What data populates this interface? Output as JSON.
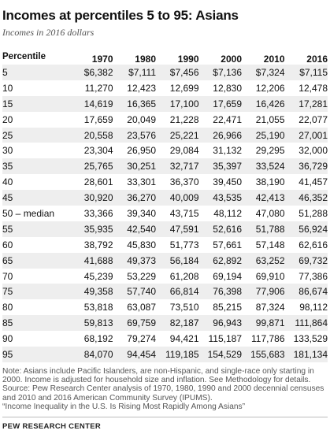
{
  "title": "Incomes at percentiles 5 to 95: Asians",
  "subtitle": "Incomes in 2016 dollars",
  "table": {
    "row_header": "Percentile",
    "columns": [
      "1970",
      "1980",
      "1990",
      "2000",
      "2010",
      "2016"
    ],
    "rows": [
      {
        "label": "5",
        "values": [
          "$6,382",
          "$7,111",
          "$7,456",
          "$7,136",
          "$7,324",
          "$7,115"
        ]
      },
      {
        "label": "10",
        "values": [
          "11,270",
          "12,423",
          "12,699",
          "12,830",
          "12,206",
          "12,478"
        ]
      },
      {
        "label": "15",
        "values": [
          "14,619",
          "16,365",
          "17,100",
          "17,659",
          "16,426",
          "17,281"
        ]
      },
      {
        "label": "20",
        "values": [
          "17,659",
          "20,049",
          "21,228",
          "22,471",
          "21,055",
          "22,077"
        ]
      },
      {
        "label": "25",
        "values": [
          "20,558",
          "23,576",
          "25,221",
          "26,966",
          "25,190",
          "27,001"
        ]
      },
      {
        "label": "30",
        "values": [
          "23,304",
          "26,950",
          "29,084",
          "31,132",
          "29,295",
          "32,000"
        ]
      },
      {
        "label": "35",
        "values": [
          "25,765",
          "30,251",
          "32,717",
          "35,397",
          "33,524",
          "36,729"
        ]
      },
      {
        "label": "40",
        "values": [
          "28,601",
          "33,301",
          "36,370",
          "39,450",
          "38,190",
          "41,457"
        ]
      },
      {
        "label": "45",
        "values": [
          "30,920",
          "36,270",
          "40,009",
          "43,535",
          "42,413",
          "46,352"
        ]
      },
      {
        "label": "50 – median",
        "values": [
          "33,366",
          "39,340",
          "43,715",
          "48,112",
          "47,080",
          "51,288"
        ]
      },
      {
        "label": "55",
        "values": [
          "35,935",
          "42,540",
          "47,591",
          "52,616",
          "51,788",
          "56,924"
        ]
      },
      {
        "label": "60",
        "values": [
          "38,792",
          "45,830",
          "51,773",
          "57,661",
          "57,148",
          "62,616"
        ]
      },
      {
        "label": "65",
        "values": [
          "41,688",
          "49,373",
          "56,184",
          "62,892",
          "63,252",
          "69,732"
        ]
      },
      {
        "label": "70",
        "values": [
          "45,239",
          "53,229",
          "61,208",
          "69,194",
          "69,910",
          "77,386"
        ]
      },
      {
        "label": "75",
        "values": [
          "49,358",
          "57,740",
          "66,814",
          "76,398",
          "77,906",
          "86,674"
        ]
      },
      {
        "label": "80",
        "values": [
          "53,818",
          "63,087",
          "73,510",
          "85,215",
          "87,324",
          "98,112"
        ]
      },
      {
        "label": "85",
        "values": [
          "59,813",
          "69,759",
          "82,187",
          "96,943",
          "99,871",
          "111,864"
        ]
      },
      {
        "label": "90",
        "values": [
          "68,192",
          "79,274",
          "94,421",
          "115,187",
          "117,786",
          "133,529"
        ]
      },
      {
        "label": "95",
        "values": [
          "84,070",
          "94,454",
          "119,185",
          "154,529",
          "155,683",
          "181,134"
        ]
      }
    ]
  },
  "note": "Note: Asians include Pacific Islanders, are non-Hispanic, and single-race only starting in 2000. Income is adjusted for household size and inflation. See Methodology for details.",
  "source": "Source: Pew Research Center analysis of 1970, 1980, 1990 and 2000 decennial censuses and 2010 and 2016 American Community Survey (IPUMS).",
  "report": "“Income Inequality in the U.S. Is Rising Most Rapidly Among Asians”",
  "footer": "PEW RESEARCH CENTER"
}
